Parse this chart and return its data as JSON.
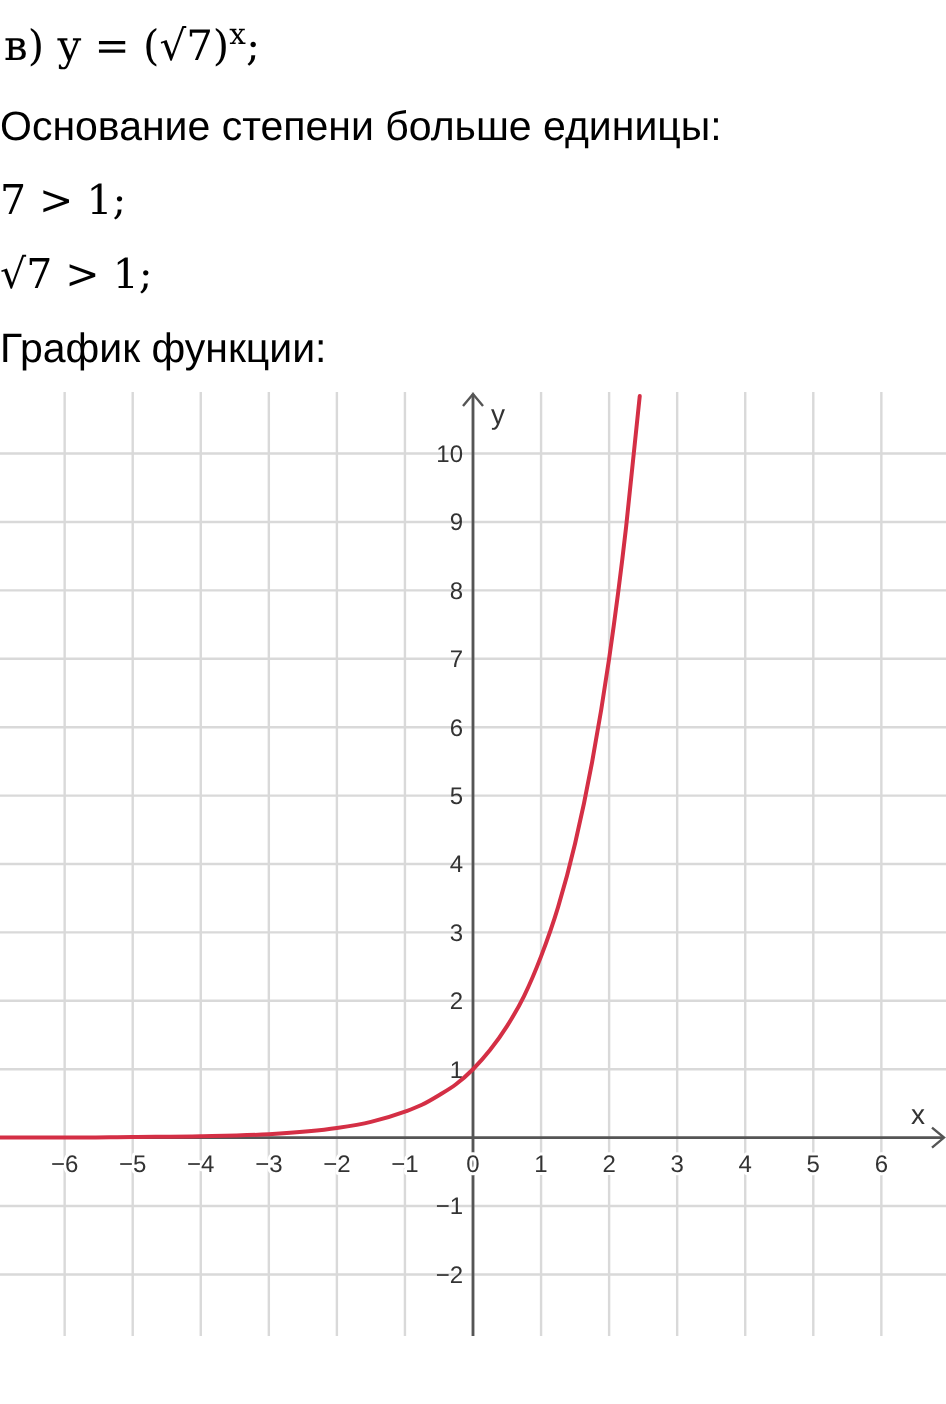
{
  "chart_data": {
    "type": "line",
    "title": "в) y = (√7)$^{x}$;",
    "annotations": [
      "Основание степени больше единицы:",
      "7 > 1;",
      "√7 > 1;",
      "График функции:"
    ],
    "xlabel": "x",
    "ylabel": "y",
    "x": [
      -6.95,
      -6,
      -5,
      -4,
      -3,
      -2,
      -1.5,
      -1,
      -0.75,
      -0.5,
      -0.25,
      0,
      0.25,
      0.5,
      0.75,
      1,
      1.25,
      1.5,
      1.75,
      2,
      2.25,
      2.45
    ],
    "series": [
      {
        "color": "#d42f45",
        "values": [
          0,
          0,
          0.01,
          0.02,
          0.05,
          0.14,
          0.23,
          0.38,
          0.48,
          0.62,
          0.78,
          1,
          1.28,
          1.63,
          2.07,
          2.65,
          3.37,
          4.3,
          5.49,
          7,
          8.93,
          10.84
        ]
      }
    ],
    "xlim": [
      -6.95,
      6.95
    ],
    "ylim": [
      -2.9,
      10.9
    ],
    "xticks": [
      -6,
      -5,
      -4,
      -3,
      -2,
      -1,
      0,
      1,
      2,
      3,
      4,
      5,
      6
    ],
    "yticks": [
      -2,
      -1,
      1,
      2,
      3,
      4,
      5,
      6,
      7,
      8,
      9,
      10
    ],
    "grid": true
  }
}
